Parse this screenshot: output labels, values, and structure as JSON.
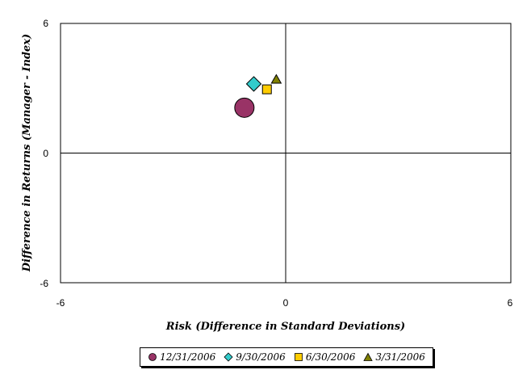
{
  "chart_data": {
    "type": "scatter",
    "xlabel": "Risk (Difference in Standard Deviations)",
    "ylabel": "Difference in Returns (Manager - Index)",
    "xlim": [
      -6,
      6
    ],
    "ylim": [
      -6,
      6
    ],
    "x_ticks": [
      "-6",
      "0",
      "6"
    ],
    "y_ticks": [
      "6",
      "0",
      "-6"
    ],
    "legend_position": "bottom",
    "series": [
      {
        "name": "12/31/2006",
        "marker": "circle",
        "color": "#993366",
        "points": [
          {
            "x": -1.1,
            "y": 2.1
          }
        ]
      },
      {
        "name": "9/30/2006",
        "marker": "diamond",
        "color": "#33CCCC",
        "points": [
          {
            "x": -0.85,
            "y": 3.2
          }
        ]
      },
      {
        "name": "6/30/2006",
        "marker": "square",
        "color": "#FFCC00",
        "points": [
          {
            "x": -0.5,
            "y": 2.95
          }
        ]
      },
      {
        "name": "3/31/2006",
        "marker": "triangle",
        "color": "#808000",
        "points": [
          {
            "x": -0.25,
            "y": 3.4
          }
        ]
      }
    ]
  }
}
